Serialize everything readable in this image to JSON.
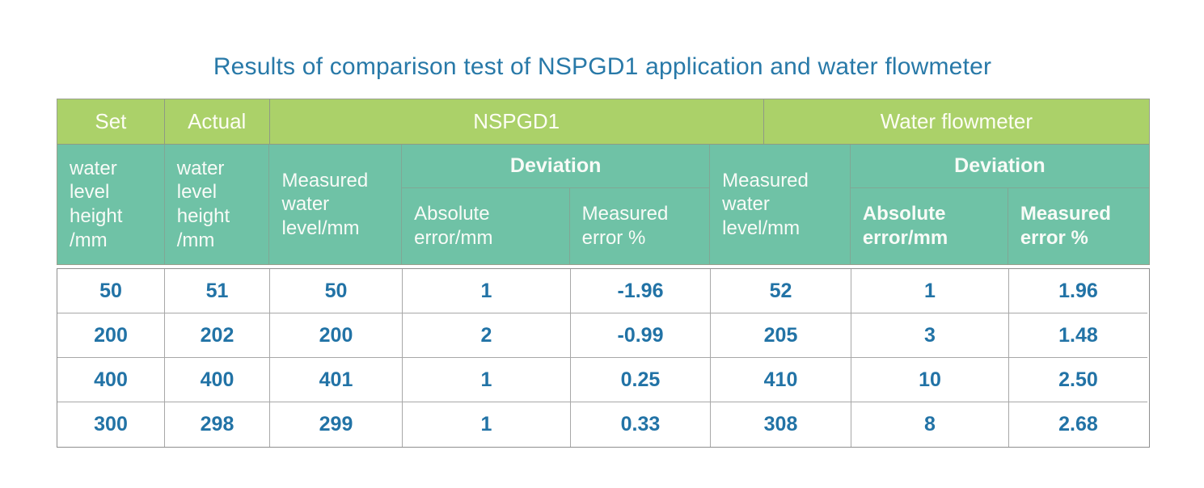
{
  "title": "Results of comparison test of NSPGD1 application and water flowmeter",
  "colors": {
    "header_green": "#abd169",
    "header_teal": "#6fc2a6",
    "title_blue": "#2879a8",
    "data_blue": "#2273a6",
    "grid_gray": "#a8a8a8"
  },
  "header": {
    "top": {
      "set": "Set",
      "actual": "Actual",
      "nspgd1": "NSPGD1",
      "water_flowmeter": "Water flowmeter"
    },
    "sub": {
      "set_water_level": "water\nlevel\nheight\n/mm",
      "actual_water_level": "water\nlevel\nheight\n/mm",
      "nspgd1_measured": "Measured\nwater\nlevel/mm",
      "nspgd1_deviation": "Deviation",
      "nspgd1_abs_error": "Absolute\nerror/mm",
      "nspgd1_meas_error": "Measured\nerror %",
      "wf_measured": "Measured\nwater\nlevel/mm",
      "wf_deviation": "Deviation",
      "wf_abs_error": "Absolute\nerror/mm",
      "wf_meas_error": "Measured\nerror %"
    }
  },
  "rows": [
    [
      "50",
      "51",
      "50",
      "1",
      "-1.96",
      "52",
      "1",
      "1.96"
    ],
    [
      "200",
      "202",
      "200",
      "2",
      "-0.99",
      "205",
      "3",
      "1.48"
    ],
    [
      "400",
      "400",
      "401",
      "1",
      "0.25",
      "410",
      "10",
      "2.50"
    ],
    [
      "300",
      "298",
      "299",
      "1",
      "0.33",
      "308",
      "8",
      "2.68"
    ]
  ],
  "chart_data": {
    "type": "table",
    "title": "Results of comparison test of NSPGD1 application and water flowmeter",
    "column_groups": [
      {
        "label": "Set",
        "sub": [
          "water level height /mm"
        ]
      },
      {
        "label": "Actual",
        "sub": [
          "water level height /mm"
        ]
      },
      {
        "label": "NSPGD1",
        "sub": [
          "Measured water level/mm",
          "Deviation: Absolute error/mm",
          "Deviation: Measured error %"
        ]
      },
      {
        "label": "Water flowmeter",
        "sub": [
          "Measured water level/mm",
          "Deviation: Absolute error/mm",
          "Deviation: Measured error %"
        ]
      }
    ],
    "rows": [
      [
        50,
        51,
        50,
        1,
        -1.96,
        52,
        1,
        1.96
      ],
      [
        200,
        202,
        200,
        2,
        -0.99,
        205,
        3,
        1.48
      ],
      [
        400,
        400,
        401,
        1,
        0.25,
        410,
        10,
        2.5
      ],
      [
        300,
        298,
        299,
        1,
        0.33,
        308,
        8,
        2.68
      ]
    ]
  }
}
